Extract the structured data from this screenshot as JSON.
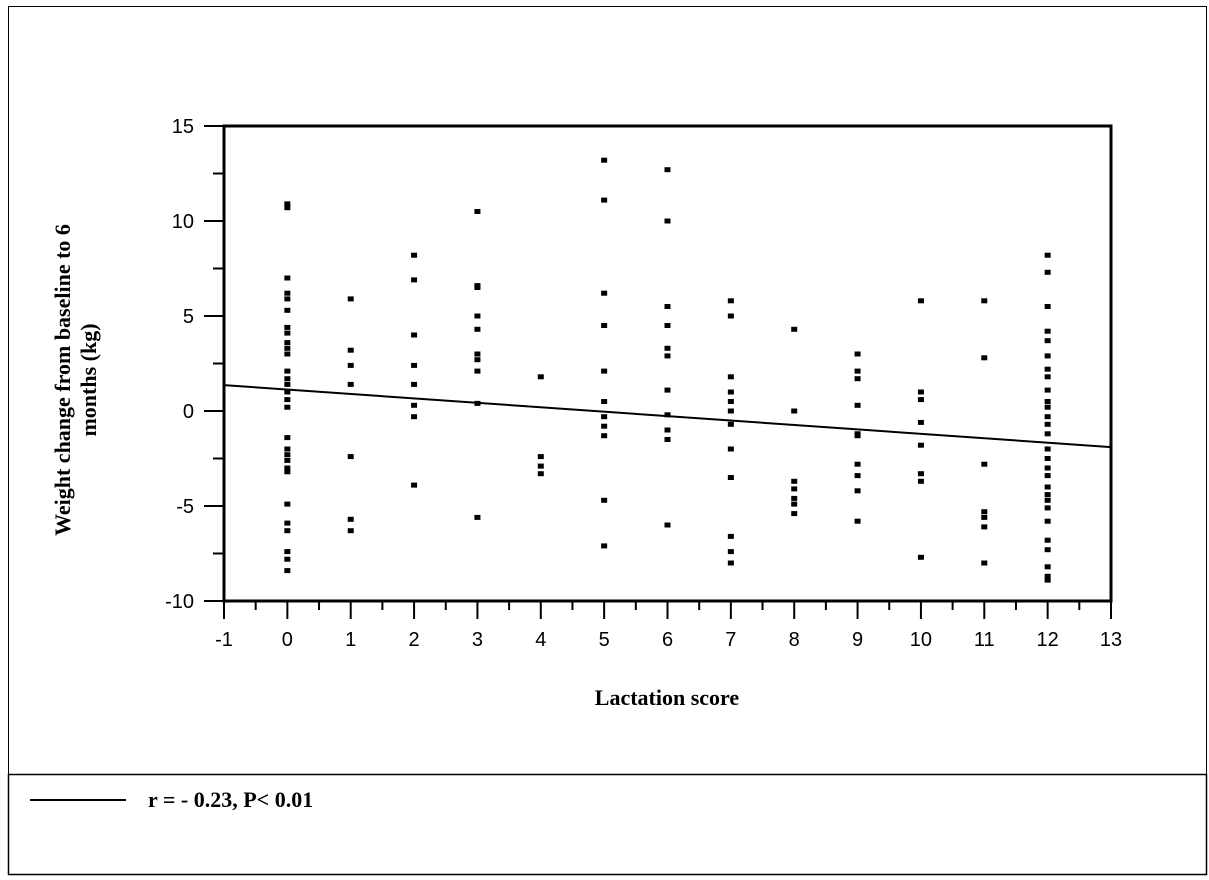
{
  "chart_data": {
    "type": "scatter",
    "title": "",
    "xlabel": "Lactation score",
    "ylabel_line1": "Weight change from baseline to 6",
    "ylabel_line2": "months (kg)",
    "xlim": [
      -1,
      13
    ],
    "ylim": [
      -10,
      15
    ],
    "x_ticks": [
      "-1",
      "0",
      "1",
      "2",
      "3",
      "4",
      "5",
      "6",
      "7",
      "8",
      "9",
      "10",
      "11",
      "12",
      "13"
    ],
    "y_ticks": [
      "-10",
      "-5",
      "0",
      "5",
      "10",
      "15"
    ],
    "grid": false,
    "legend_position": "bottom",
    "legend_text": "r = - 0.23,  P< 0.01",
    "regression_line": {
      "intercept": 1.13,
      "slope": -0.233
    },
    "points": [
      [
        0,
        10.9
      ],
      [
        0,
        10.7
      ],
      [
        0,
        7.0
      ],
      [
        0,
        6.2
      ],
      [
        0,
        5.9
      ],
      [
        0,
        5.3
      ],
      [
        0,
        4.4
      ],
      [
        0,
        4.1
      ],
      [
        0,
        3.6
      ],
      [
        0,
        3.3
      ],
      [
        0,
        3.0
      ],
      [
        0,
        2.1
      ],
      [
        0,
        1.7
      ],
      [
        0,
        1.4
      ],
      [
        0,
        1.0
      ],
      [
        0,
        0.6
      ],
      [
        0,
        0.2
      ],
      [
        0,
        -1.4
      ],
      [
        0,
        -2.0
      ],
      [
        0,
        -2.3
      ],
      [
        0,
        -2.6
      ],
      [
        0,
        -3.0
      ],
      [
        0,
        -3.2
      ],
      [
        0,
        -4.9
      ],
      [
        0,
        -5.9
      ],
      [
        0,
        -6.3
      ],
      [
        0,
        -7.4
      ],
      [
        0,
        -7.8
      ],
      [
        0,
        -8.4
      ],
      [
        1,
        5.9
      ],
      [
        1,
        3.2
      ],
      [
        1,
        2.4
      ],
      [
        1,
        1.4
      ],
      [
        1,
        -2.4
      ],
      [
        1,
        -5.7
      ],
      [
        1,
        -6.3
      ],
      [
        2,
        8.2
      ],
      [
        2,
        6.9
      ],
      [
        2,
        4.0
      ],
      [
        2,
        2.4
      ],
      [
        2,
        1.4
      ],
      [
        2,
        0.3
      ],
      [
        2,
        -0.3
      ],
      [
        2,
        -3.9
      ],
      [
        3,
        10.5
      ],
      [
        3,
        6.6
      ],
      [
        3,
        6.5
      ],
      [
        3,
        5.0
      ],
      [
        3,
        4.3
      ],
      [
        3,
        3.0
      ],
      [
        3,
        2.7
      ],
      [
        3,
        2.1
      ],
      [
        3,
        0.4
      ],
      [
        3,
        -5.6
      ],
      [
        4,
        1.8
      ],
      [
        4,
        -2.4
      ],
      [
        4,
        -2.9
      ],
      [
        4,
        -3.3
      ],
      [
        5,
        13.2
      ],
      [
        5,
        11.1
      ],
      [
        5,
        6.2
      ],
      [
        5,
        4.5
      ],
      [
        5,
        2.1
      ],
      [
        5,
        0.5
      ],
      [
        5,
        -0.3
      ],
      [
        5,
        -0.8
      ],
      [
        5,
        -1.3
      ],
      [
        5,
        -4.7
      ],
      [
        5,
        -7.1
      ],
      [
        6,
        12.7
      ],
      [
        6,
        10.0
      ],
      [
        6,
        5.5
      ],
      [
        6,
        4.5
      ],
      [
        6,
        3.3
      ],
      [
        6,
        2.9
      ],
      [
        6,
        1.1
      ],
      [
        6,
        -0.2
      ],
      [
        6,
        -1.0
      ],
      [
        6,
        -1.5
      ],
      [
        6,
        -6.0
      ],
      [
        7,
        5.8
      ],
      [
        7,
        5.0
      ],
      [
        7,
        1.8
      ],
      [
        7,
        1.0
      ],
      [
        7,
        0.5
      ],
      [
        7,
        0.0
      ],
      [
        7,
        -0.7
      ],
      [
        7,
        -2.0
      ],
      [
        7,
        -3.5
      ],
      [
        7,
        -6.6
      ],
      [
        7,
        -7.4
      ],
      [
        7,
        -8.0
      ],
      [
        8,
        4.3
      ],
      [
        8,
        0.0
      ],
      [
        8,
        -3.7
      ],
      [
        8,
        -4.1
      ],
      [
        8,
        -4.6
      ],
      [
        8,
        -4.9
      ],
      [
        8,
        -5.4
      ],
      [
        9,
        3.0
      ],
      [
        9,
        2.1
      ],
      [
        9,
        1.7
      ],
      [
        9,
        0.3
      ],
      [
        9,
        -1.2
      ],
      [
        9,
        -1.3
      ],
      [
        9,
        -2.8
      ],
      [
        9,
        -3.4
      ],
      [
        9,
        -4.2
      ],
      [
        9,
        -5.8
      ],
      [
        10,
        5.8
      ],
      [
        10,
        1.0
      ],
      [
        10,
        0.6
      ],
      [
        10,
        -0.6
      ],
      [
        10,
        -1.8
      ],
      [
        10,
        -3.3
      ],
      [
        10,
        -3.7
      ],
      [
        10,
        -7.7
      ],
      [
        11,
        5.8
      ],
      [
        11,
        2.8
      ],
      [
        11,
        -2.8
      ],
      [
        11,
        -5.3
      ],
      [
        11,
        -5.6
      ],
      [
        11,
        -6.1
      ],
      [
        11,
        -8.0
      ],
      [
        12,
        8.2
      ],
      [
        12,
        7.3
      ],
      [
        12,
        5.5
      ],
      [
        12,
        4.2
      ],
      [
        12,
        3.7
      ],
      [
        12,
        2.9
      ],
      [
        12,
        2.2
      ],
      [
        12,
        1.8
      ],
      [
        12,
        1.1
      ],
      [
        12,
        0.5
      ],
      [
        12,
        0.2
      ],
      [
        12,
        -0.3
      ],
      [
        12,
        -0.7
      ],
      [
        12,
        -1.2
      ],
      [
        12,
        -2.0
      ],
      [
        12,
        -2.5
      ],
      [
        12,
        -3.0
      ],
      [
        12,
        -3.4
      ],
      [
        12,
        -4.0
      ],
      [
        12,
        -4.4
      ],
      [
        12,
        -4.7
      ],
      [
        12,
        -5.1
      ],
      [
        12,
        -5.8
      ],
      [
        12,
        -6.8
      ],
      [
        12,
        -7.3
      ],
      [
        12,
        -8.2
      ],
      [
        12,
        -8.7
      ],
      [
        12,
        -8.9
      ]
    ]
  }
}
